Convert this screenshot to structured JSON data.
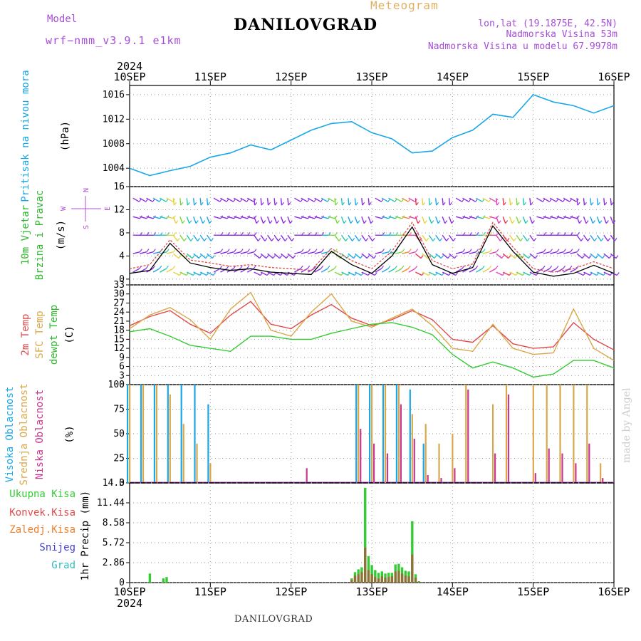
{
  "header": {
    "model_label": "Model",
    "model_value": "wrf−nmm_v3.9.1  e1km",
    "app_title": "Meteogram",
    "station": "DANILOVGRAD",
    "coords": "lon,lat (19.1875E, 42.5N)",
    "elevation": "Nadmorska Visina 53m",
    "model_elevation": "Nadmorska Visina u modelu 67.9978m"
  },
  "footer": {
    "station": "DANILOVGRAD",
    "credit": "made by Angel"
  },
  "colors": {
    "pressure": "#1aa7e8",
    "wind_blue": "#1aa7e8",
    "wind_purple": "#8a2be2",
    "temp2m": "#e04b4b",
    "sfc_temp": "#d9a84a",
    "dewpoint": "#33cc33",
    "cloud_high": "#1aa7e8",
    "cloud_mid": "#d9a84a",
    "cloud_low": "#c8388f",
    "precip_total": "#33cc33",
    "precip_conv": "#e04b4b",
    "precip_strat": "#f07f2a",
    "snow": "#4040d0",
    "hail": "#33bbbb"
  },
  "chart_data": [
    {
      "type": "line",
      "panel": "pressure",
      "time_axis": {
        "labels": [
          "10SEP",
          "11SEP",
          "12SEP",
          "13SEP",
          "14SEP",
          "15SEP",
          "16SEP"
        ],
        "year": "2024",
        "start": "2024-09-10T00:00",
        "end": "2024-09-16T00:00"
      },
      "ylabel": "Pritisak na nivou mora",
      "yunit": "(hPa)",
      "yticks": [
        "1004",
        "1008",
        "1012",
        "1016"
      ],
      "ylim": [
        1001,
        1017.5
      ],
      "grid": true,
      "x": [
        "2024-09-10T00:00",
        "2024-09-10T06:00",
        "2024-09-10T12:00",
        "2024-09-10T18:00",
        "2024-09-11T00:00",
        "2024-09-11T06:00",
        "2024-09-11T12:00",
        "2024-09-11T18:00",
        "2024-09-12T00:00",
        "2024-09-12T06:00",
        "2024-09-12T12:00",
        "2024-09-12T18:00",
        "2024-09-13T00:00",
        "2024-09-13T06:00",
        "2024-09-13T12:00",
        "2024-09-13T18:00",
        "2024-09-14T00:00",
        "2024-09-14T06:00",
        "2024-09-14T12:00",
        "2024-09-14T18:00",
        "2024-09-15T00:00",
        "2024-09-15T06:00",
        "2024-09-15T12:00",
        "2024-09-15T18:00",
        "2024-09-16T00:00"
      ],
      "series": [
        {
          "name": "Pritisak na nivou mora",
          "values": [
            1004.0,
            1002.8,
            1003.6,
            1004.3,
            1005.8,
            1006.5,
            1007.8,
            1007.0,
            1008.6,
            1010.2,
            1011.3,
            1011.6,
            1009.8,
            1008.8,
            1006.5,
            1006.8,
            1009.0,
            1010.2,
            1012.8,
            1012.3,
            1016.0,
            1014.8,
            1014.2,
            1013.0,
            1014.2
          ]
        }
      ]
    },
    {
      "type": "line",
      "panel": "wind",
      "ylabel": "10m Vjetar Brzina i Pravac",
      "yunit": "(m/s)",
      "direction_legend": "N, S, E, W",
      "yticks": [
        "0",
        "4",
        "8",
        "12",
        "16"
      ],
      "ylim": [
        -1,
        16
      ],
      "grid": true,
      "x_hours": [
        0,
        6,
        12,
        18,
        24,
        30,
        36,
        42,
        48,
        54,
        60,
        66,
        72,
        78,
        84,
        90,
        96,
        102,
        108,
        114,
        120,
        126,
        132,
        138,
        144
      ],
      "series": [
        {
          "name": "speed",
          "values": [
            1.0,
            1.5,
            6.2,
            2.8,
            2.0,
            1.5,
            1.8,
            1.2,
            1.0,
            0.8,
            4.8,
            2.5,
            1.0,
            4.0,
            9.0,
            2.5,
            1.0,
            2.0,
            9.2,
            4.8,
            1.2,
            0.5,
            1.0,
            2.4,
            1.0
          ]
        },
        {
          "name": "gust",
          "values": [
            1.8,
            2.5,
            6.8,
            3.3,
            2.8,
            2.2,
            2.5,
            2.0,
            1.8,
            1.5,
            5.3,
            3.2,
            1.8,
            4.8,
            9.8,
            3.2,
            1.8,
            2.6,
            9.8,
            5.5,
            1.8,
            1.2,
            1.8,
            3.0,
            1.8
          ]
        }
      ]
    },
    {
      "type": "line",
      "panel": "temperature",
      "ylabel": "2m Temp / SFC Temp / dewpt Temp",
      "yunit": "(C)",
      "yticks": [
        "0",
        "3",
        "6",
        "9",
        "12",
        "15",
        "18",
        "21",
        "24",
        "27",
        "30",
        "33"
      ],
      "ylim": [
        0,
        33
      ],
      "grid": true,
      "x_hours": [
        0,
        6,
        12,
        18,
        24,
        30,
        36,
        42,
        48,
        54,
        60,
        66,
        72,
        78,
        84,
        90,
        96,
        102,
        108,
        114,
        120,
        126,
        132,
        138,
        144
      ],
      "series": [
        {
          "name": "2m Temp",
          "values": [
            19.5,
            22.5,
            24.5,
            20.0,
            17.0,
            23.0,
            27.5,
            20.0,
            18.5,
            23.0,
            26.5,
            22.0,
            19.5,
            21.5,
            24.5,
            21.5,
            15.0,
            14.0,
            19.5,
            13.5,
            12.0,
            12.5,
            20.5,
            15.0,
            11.5
          ]
        },
        {
          "name": "SFC Temp",
          "values": [
            18.5,
            23.0,
            25.5,
            21.5,
            15.0,
            25.0,
            30.5,
            18.0,
            16.0,
            24.0,
            30.0,
            21.0,
            19.0,
            22.0,
            25.0,
            19.5,
            12.0,
            11.0,
            20.0,
            12.0,
            10.0,
            10.5,
            25.0,
            12.0,
            8.0
          ]
        },
        {
          "name": "dewpt Temp",
          "values": [
            17.5,
            18.5,
            16.0,
            13.0,
            12.0,
            11.0,
            16.0,
            16.0,
            15.0,
            15.0,
            17.0,
            18.5,
            20.0,
            20.5,
            19.0,
            16.5,
            10.0,
            5.5,
            7.5,
            5.5,
            2.5,
            3.5,
            8.0,
            8.0,
            5.5
          ]
        }
      ]
    },
    {
      "type": "bar",
      "panel": "clouds",
      "ylabel": "Visoka Oblacnost / Srednja Oblacnost / Niska Oblacnost",
      "yunit": "(%)",
      "yticks": [
        "0",
        "25",
        "50",
        "75",
        "100"
      ],
      "ylim": [
        0,
        100
      ],
      "grid": true,
      "x_hours": [
        0,
        4,
        8,
        12,
        16,
        20,
        24,
        28,
        32,
        36,
        40,
        44,
        48,
        52,
        56,
        60,
        64,
        68,
        72,
        76,
        80,
        84,
        88,
        92,
        96,
        100,
        104,
        108,
        112,
        116,
        120,
        124,
        128,
        132,
        136,
        140,
        144
      ],
      "series": [
        {
          "name": "Visoka Oblacnost",
          "values": [
            100,
            100,
            100,
            100,
            100,
            100,
            80,
            0,
            0,
            0,
            0,
            0,
            0,
            0,
            0,
            0,
            0,
            100,
            100,
            100,
            100,
            95,
            40,
            0,
            0,
            0,
            0,
            0,
            0,
            0,
            0,
            0,
            0,
            0,
            0,
            0,
            0
          ]
        },
        {
          "name": "Srednja Oblacnost",
          "values": [
            100,
            100,
            100,
            90,
            60,
            40,
            20,
            0,
            0,
            0,
            0,
            0,
            0,
            0,
            0,
            0,
            0,
            100,
            100,
            100,
            100,
            70,
            60,
            40,
            50,
            100,
            0,
            80,
            100,
            0,
            100,
            100,
            100,
            100,
            100,
            20,
            0
          ]
        },
        {
          "name": "Niska Oblacnost",
          "values": [
            0,
            0,
            0,
            0,
            0,
            0,
            0,
            0,
            0,
            0,
            0,
            0,
            0,
            15,
            0,
            0,
            0,
            55,
            40,
            30,
            80,
            45,
            8,
            5,
            15,
            95,
            0,
            30,
            90,
            0,
            10,
            35,
            30,
            20,
            40,
            5,
            0
          ]
        }
      ]
    },
    {
      "type": "bar",
      "panel": "precipitation",
      "ylabel": "1hr Precip",
      "yunit": "(mm)",
      "yticks": [
        "0",
        "2.86",
        "5.72",
        "8.58",
        "11.44",
        "14.3"
      ],
      "ylim": [
        0,
        14.3
      ],
      "grid": true,
      "x_hours": [
        6,
        10,
        11,
        66,
        67,
        68,
        69,
        70,
        71,
        72,
        73,
        74,
        75,
        76,
        77,
        78,
        79,
        80,
        81,
        82,
        83,
        84,
        85,
        86
      ],
      "series": [
        {
          "name": "Ukupna Kisa",
          "values": [
            1.3,
            0.6,
            0.8,
            0.6,
            1.5,
            1.9,
            2.2,
            13.6,
            3.8,
            2.5,
            1.8,
            1.4,
            1.6,
            1.3,
            1.4,
            1.4,
            2.6,
            2.7,
            2.2,
            1.7,
            1.6,
            8.8,
            1.2,
            0.2
          ]
        },
        {
          "name": "Konvek.Kisa",
          "values": [
            0,
            0,
            0,
            0.4,
            1.0,
            1.2,
            1.5,
            5.0,
            1.8,
            1.2,
            0.8,
            0.6,
            0.9,
            0.7,
            0.8,
            0.9,
            1.6,
            1.7,
            1.3,
            1.0,
            0.9,
            4.0,
            0.7,
            0.1
          ]
        },
        {
          "name": "Zaledj.Kisa",
          "values": []
        },
        {
          "name": "Snijeg",
          "values": []
        },
        {
          "name": "Grad",
          "values": []
        }
      ]
    }
  ],
  "panel_labels": {
    "pressure": {
      "title": "Pritisak na nivou mora",
      "unit": "(hPa)"
    },
    "wind": {
      "line1": "10m Vjetar",
      "line2": "Brzina i Pravac",
      "unit": "(m/s)",
      "legend_n": "N",
      "legend_s": "S",
      "legend_e": "E",
      "legend_w": "W"
    },
    "temperature": {
      "line1": "2m Temp",
      "line2": "SFC Temp",
      "line3": "dewpt Temp",
      "unit": "(C)"
    },
    "clouds": {
      "line1": "Visoka Oblacnost",
      "line2": "Srednja Oblacnost",
      "line3": "Niska Oblacnost",
      "unit": "(%)"
    },
    "precip": {
      "total": "Ukupna Kisa",
      "conv": "Konvek.Kisa",
      "strat": "Zaledj.Kisa",
      "snow": "Snijeg",
      "hail": "Grad",
      "unit": "1hr Precip (mm)"
    }
  }
}
